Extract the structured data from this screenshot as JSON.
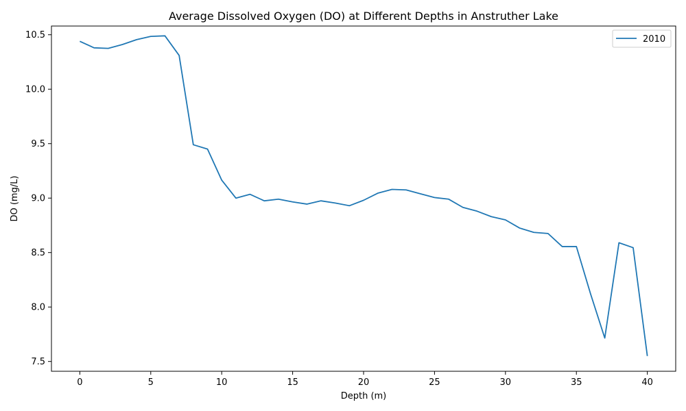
{
  "chart_data": {
    "type": "line",
    "title": "Average Dissolved Oxygen (DO) at Different Depths in Anstruther Lake",
    "xlabel": "Depth (m)",
    "ylabel": "DO (mg/L)",
    "xlim": [
      -2,
      42
    ],
    "ylim": [
      7.41,
      10.58
    ],
    "xticks": [
      0,
      5,
      10,
      15,
      20,
      25,
      30,
      35,
      40
    ],
    "yticks": [
      7.5,
      8.0,
      8.5,
      9.0,
      9.5,
      10.0,
      10.5
    ],
    "grid": false,
    "legend_position": "top-right",
    "series": [
      {
        "name": "2010",
        "color": "#1f77b4",
        "x": [
          0,
          1,
          2,
          3,
          4,
          5,
          6,
          7,
          8,
          9,
          10,
          11,
          12,
          13,
          14,
          15,
          16,
          17,
          18,
          19,
          20,
          21,
          22,
          23,
          24,
          25,
          26,
          27,
          28,
          29,
          30,
          31,
          32,
          33,
          34,
          35,
          36,
          37,
          38,
          39,
          40
        ],
        "y": [
          10.44,
          10.38,
          10.375,
          10.41,
          10.455,
          10.485,
          10.49,
          10.31,
          9.49,
          9.45,
          9.165,
          9.0,
          9.035,
          8.975,
          8.99,
          8.965,
          8.945,
          8.975,
          8.955,
          8.93,
          8.98,
          9.045,
          9.08,
          9.075,
          9.04,
          9.005,
          8.99,
          8.915,
          8.88,
          8.83,
          8.8,
          8.725,
          8.685,
          8.675,
          8.555,
          8.555,
          8.12,
          7.715,
          8.59,
          8.545,
          7.55
        ]
      }
    ]
  }
}
